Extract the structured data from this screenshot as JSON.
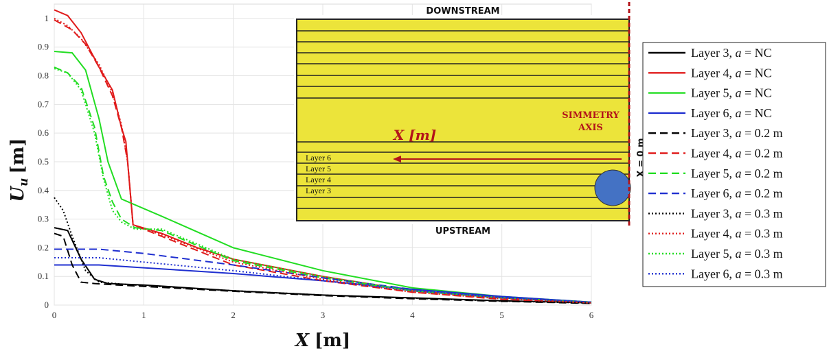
{
  "chart_data": {
    "type": "line",
    "xlabel": "X [m]",
    "ylabel": "U_u [m]",
    "xlim": [
      0,
      6
    ],
    "ylim": [
      0,
      1.05
    ],
    "xticks": [
      0,
      1,
      2,
      3,
      4,
      5,
      6
    ],
    "yticks": [
      0,
      0.1,
      0.2,
      0.3,
      0.4,
      0.5,
      0.6,
      0.7,
      0.8,
      0.9,
      1
    ],
    "grid": true,
    "legend_position": "right-outside",
    "series": [
      {
        "name": "Layer 3, a = NC",
        "color": "#000000",
        "dash": "solid",
        "x": [
          0,
          0.15,
          0.3,
          0.45,
          0.6,
          1,
          2,
          3,
          4,
          5,
          6
        ],
        "y": [
          0.27,
          0.26,
          0.16,
          0.09,
          0.075,
          0.07,
          0.05,
          0.035,
          0.025,
          0.015,
          0.008
        ]
      },
      {
        "name": "Layer 4, a = NC",
        "color": "#e01b1b",
        "dash": "solid",
        "x": [
          0,
          0.15,
          0.3,
          0.5,
          0.65,
          0.75,
          0.8,
          0.88,
          1.2,
          1.6,
          2,
          3,
          4,
          5,
          6
        ],
        "y": [
          1.03,
          1.01,
          0.95,
          0.83,
          0.75,
          0.62,
          0.57,
          0.28,
          0.25,
          0.2,
          0.16,
          0.1,
          0.05,
          0.025,
          0.01
        ]
      },
      {
        "name": "Layer 5, a = NC",
        "color": "#22dd22",
        "dash": "solid",
        "x": [
          0,
          0.2,
          0.35,
          0.5,
          0.6,
          0.75,
          0.9,
          1.2,
          2,
          3,
          4,
          5,
          6
        ],
        "y": [
          0.885,
          0.88,
          0.82,
          0.65,
          0.5,
          0.37,
          0.35,
          0.31,
          0.2,
          0.12,
          0.06,
          0.03,
          0.01
        ]
      },
      {
        "name": "Layer 6, a = NC",
        "color": "#1f2fd0",
        "dash": "solid",
        "x": [
          0,
          0.5,
          1,
          2,
          3,
          4,
          5,
          6
        ],
        "y": [
          0.14,
          0.14,
          0.13,
          0.11,
          0.085,
          0.055,
          0.03,
          0.01
        ]
      },
      {
        "name": "Layer 3, a = 0.2 m",
        "color": "#000000",
        "dash": "dashed",
        "x": [
          0,
          0.1,
          0.2,
          0.3,
          0.45,
          0.7,
          1,
          2,
          3,
          4,
          5,
          6
        ],
        "y": [
          0.25,
          0.24,
          0.14,
          0.08,
          0.075,
          0.07,
          0.065,
          0.048,
          0.033,
          0.022,
          0.013,
          0.006
        ]
      },
      {
        "name": "Layer 4, a = 0.2 m",
        "color": "#e01b1b",
        "dash": "dashed",
        "x": [
          0,
          0.2,
          0.35,
          0.5,
          0.65,
          0.75,
          0.82,
          0.88,
          1.2,
          2,
          3,
          4,
          5,
          6
        ],
        "y": [
          0.995,
          0.96,
          0.91,
          0.83,
          0.73,
          0.62,
          0.5,
          0.28,
          0.24,
          0.14,
          0.085,
          0.045,
          0.02,
          0.008
        ]
      },
      {
        "name": "Layer 5, a = 0.2 m",
        "color": "#22dd22",
        "dash": "dashed",
        "x": [
          0,
          0.15,
          0.3,
          0.45,
          0.55,
          0.65,
          0.75,
          0.9,
          1.2,
          2,
          3,
          4,
          5,
          6
        ],
        "y": [
          0.83,
          0.81,
          0.76,
          0.62,
          0.45,
          0.36,
          0.3,
          0.27,
          0.26,
          0.155,
          0.095,
          0.05,
          0.025,
          0.01
        ]
      },
      {
        "name": "Layer 6, a = 0.2 m",
        "color": "#1f2fd0",
        "dash": "dashed",
        "x": [
          0,
          0.5,
          1,
          2,
          3,
          4,
          5,
          6
        ],
        "y": [
          0.195,
          0.195,
          0.18,
          0.14,
          0.095,
          0.055,
          0.028,
          0.01
        ]
      },
      {
        "name": "Layer 3, a = 0.3 m",
        "color": "#000000",
        "dash": "dotted",
        "x": [
          0,
          0.1,
          0.2,
          0.35,
          0.5,
          0.8,
          1,
          2,
          3,
          4,
          5,
          6
        ],
        "y": [
          0.375,
          0.33,
          0.24,
          0.12,
          0.08,
          0.072,
          0.068,
          0.05,
          0.035,
          0.024,
          0.014,
          0.007
        ]
      },
      {
        "name": "Layer 4, a = 0.3 m",
        "color": "#e01b1b",
        "dash": "dotted",
        "x": [
          0,
          0.15,
          0.3,
          0.5,
          0.65,
          0.75,
          0.82,
          0.88,
          1.2,
          2,
          3,
          4,
          5,
          6
        ],
        "y": [
          1.0,
          0.975,
          0.93,
          0.84,
          0.74,
          0.63,
          0.5,
          0.28,
          0.245,
          0.15,
          0.09,
          0.045,
          0.022,
          0.008
        ]
      },
      {
        "name": "Layer 5, a = 0.3 m",
        "color": "#22dd22",
        "dash": "dotted",
        "x": [
          0,
          0.15,
          0.3,
          0.45,
          0.55,
          0.65,
          0.75,
          0.9,
          1.2,
          2,
          3,
          4,
          5,
          6
        ],
        "y": [
          0.825,
          0.81,
          0.75,
          0.6,
          0.44,
          0.33,
          0.29,
          0.265,
          0.265,
          0.16,
          0.1,
          0.05,
          0.025,
          0.01
        ]
      },
      {
        "name": "Layer 6, a = 0.3 m",
        "color": "#1f2fd0",
        "dash": "dotted",
        "x": [
          0,
          0.5,
          1,
          2,
          3,
          4,
          5,
          6
        ],
        "y": [
          0.165,
          0.165,
          0.15,
          0.12,
          0.085,
          0.05,
          0.025,
          0.01
        ]
      }
    ]
  },
  "legend_symbol": "a",
  "legend_entries": [
    {
      "layer": "Layer 3,",
      "value": "= NC"
    },
    {
      "layer": "Layer 4,",
      "value": "= NC"
    },
    {
      "layer": "Layer 5,",
      "value": "= NC"
    },
    {
      "layer": "Layer 6,",
      "value": "= NC"
    },
    {
      "layer": "Layer 3,",
      "value": "= 0.2 m"
    },
    {
      "layer": "Layer 4,",
      "value": "= 0.2 m"
    },
    {
      "layer": "Layer 5,",
      "value": "= 0.2 m"
    },
    {
      "layer": "Layer 6,",
      "value": "= 0.2 m"
    },
    {
      "layer": "Layer 3,",
      "value": "= 0.3 m"
    },
    {
      "layer": "Layer 4,",
      "value": "= 0.3 m"
    },
    {
      "layer": "Layer 5,",
      "value": "= 0.3 m"
    },
    {
      "layer": "Layer 6,",
      "value": "= 0.3 m"
    }
  ],
  "axes": {
    "y_main": "U",
    "y_sub": "u",
    "y_unit": "[m]",
    "x_main": "X",
    "x_unit": "[m]"
  },
  "schematic": {
    "top_label": "DOWNSTREAM",
    "bottom_label": "UPSTREAM",
    "symmetry_line1": "SIMMETRY",
    "symmetry_line2": "AXIS",
    "x_arrow_label": "X [m]",
    "zero_label": "X = 0 m",
    "layer_labels": [
      "Layer 6",
      "Layer 5",
      "Layer 4",
      "Layer 3"
    ],
    "fill_color": "#ece43a",
    "circle_color": "#4472c4",
    "accent_color": "#b3141a"
  }
}
